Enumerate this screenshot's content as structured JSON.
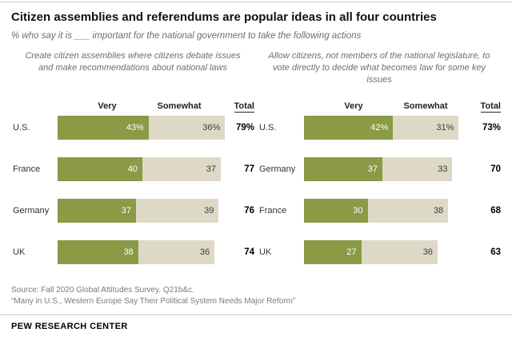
{
  "page": {
    "title": "Citizen assemblies and referendums are popular ideas in all four countries",
    "subtitle": "% who say it is ___ important for the national government to take the following actions",
    "source_line1": "Source: Fall 2020 Global Attitudes Survey. Q21b&c.",
    "source_line2": "“Many in U.S., Western Europe Say Their Political System Needs Major Reform”",
    "footer": "PEW RESEARCH CENTER"
  },
  "colors": {
    "very": "#8a9a45",
    "somewhat": "#ded9c6",
    "value_text_on_very": "#ffffff",
    "value_text_on_somewhat": "#3c3c3c"
  },
  "chart_data": [
    {
      "type": "bar",
      "orientation": "horizontal",
      "stacked": true,
      "title": "Create citizen assemblies where citizens debate issues and make recommendations about national laws",
      "columns": [
        "Very",
        "Somewhat",
        "Total"
      ],
      "categories": [
        "U.S.",
        "France",
        "Germany",
        "UK"
      ],
      "series": [
        {
          "name": "Very",
          "values": [
            43,
            40,
            37,
            38
          ]
        },
        {
          "name": "Somewhat",
          "values": [
            36,
            37,
            39,
            36
          ]
        }
      ],
      "totals": [
        79,
        77,
        76,
        74
      ],
      "xlim": [
        0,
        100
      ],
      "legend": "column-headers",
      "rows": [
        {
          "country": "U.S.",
          "very": 43,
          "somewhat": 36,
          "total": 79,
          "very_label": "43%",
          "somewhat_label": "36%",
          "total_label": "79%"
        },
        {
          "country": "France",
          "very": 40,
          "somewhat": 37,
          "total": 77,
          "very_label": "40",
          "somewhat_label": "37",
          "total_label": "77"
        },
        {
          "country": "Germany",
          "very": 37,
          "somewhat": 39,
          "total": 76,
          "very_label": "37",
          "somewhat_label": "39",
          "total_label": "76"
        },
        {
          "country": "UK",
          "very": 38,
          "somewhat": 36,
          "total": 74,
          "very_label": "38",
          "somewhat_label": "36",
          "total_label": "74"
        }
      ]
    },
    {
      "type": "bar",
      "orientation": "horizontal",
      "stacked": true,
      "title": "Allow citizens, not members of the national legislature, to vote directly to decide what becomes law for some key issues",
      "columns": [
        "Very",
        "Somewhat",
        "Total"
      ],
      "categories": [
        "U.S.",
        "Germany",
        "France",
        "UK"
      ],
      "series": [
        {
          "name": "Very",
          "values": [
            42,
            37,
            30,
            27
          ]
        },
        {
          "name": "Somewhat",
          "values": [
            31,
            33,
            38,
            36
          ]
        }
      ],
      "totals": [
        73,
        70,
        68,
        63
      ],
      "xlim": [
        0,
        100
      ],
      "legend": "column-headers",
      "rows": [
        {
          "country": "U.S.",
          "very": 42,
          "somewhat": 31,
          "total": 73,
          "very_label": "42%",
          "somewhat_label": "31%",
          "total_label": "73%"
        },
        {
          "country": "Germany",
          "very": 37,
          "somewhat": 33,
          "total": 70,
          "very_label": "37",
          "somewhat_label": "33",
          "total_label": "70"
        },
        {
          "country": "France",
          "very": 30,
          "somewhat": 38,
          "total": 68,
          "very_label": "30",
          "somewhat_label": "38",
          "total_label": "68"
        },
        {
          "country": "UK",
          "very": 27,
          "somewhat": 36,
          "total": 63,
          "very_label": "27",
          "somewhat_label": "36",
          "total_label": "63"
        }
      ]
    }
  ]
}
